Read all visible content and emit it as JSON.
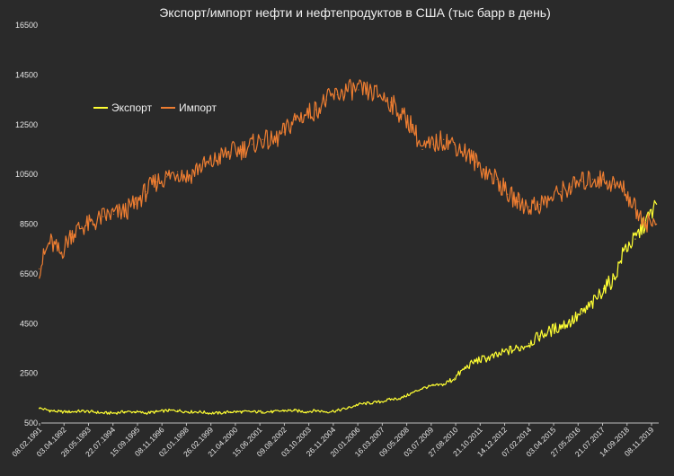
{
  "chart_data": {
    "type": "line",
    "title": "Экспорт/импорт нефти и нефтепродуктов в США (тыс барр в день)",
    "xlabel": "",
    "ylabel": "",
    "ylim": [
      500,
      16500
    ],
    "y_ticks": [
      500,
      2500,
      4500,
      6500,
      8500,
      10500,
      12500,
      14500,
      16500
    ],
    "x_tick_labels": [
      "08.02.1991",
      "03.04.1992",
      "28.05.1993",
      "22.07.1994",
      "15.09.1995",
      "08.11.1996",
      "02.01.1998",
      "26.02.1999",
      "21.04.2000",
      "15.06.2001",
      "09.08.2002",
      "03.10.2003",
      "26.11.2004",
      "20.01.2006",
      "16.03.2007",
      "09.05.2008",
      "03.07.2009",
      "27.08.2010",
      "21.10.2011",
      "14.12.2012",
      "07.02.2014",
      "03.04.2015",
      "27.05.2016",
      "21.07.2017",
      "14.09.2018",
      "08.11.2019"
    ],
    "x": [
      1991,
      1991.5,
      1992,
      1992.5,
      1993,
      1993.5,
      1994,
      1994.5,
      1995,
      1995.5,
      1996,
      1996.5,
      1997,
      1997.5,
      1998,
      1998.5,
      1999,
      1999.5,
      2000,
      2000.5,
      2001,
      2001.5,
      2002,
      2002.5,
      2003,
      2003.5,
      2004,
      2004.5,
      2005,
      2005.5,
      2006,
      2006.5,
      2007,
      2007.5,
      2008,
      2008.5,
      2009,
      2009.5,
      2010,
      2010.5,
      2011,
      2011.5,
      2012,
      2012.5,
      2013,
      2013.5,
      2014,
      2014.5,
      2015,
      2015.5,
      2016,
      2016.5,
      2017,
      2017.5,
      2018,
      2018.5,
      2019,
      2019.5,
      2020
    ],
    "series": [
      {
        "name": "Экспорт",
        "color": "#ffff33",
        "values": [
          1100,
          1000,
          950,
          950,
          980,
          950,
          900,
          900,
          950,
          950,
          900,
          950,
          1000,
          1000,
          950,
          950,
          900,
          900,
          950,
          950,
          950,
          950,
          950,
          1000,
          1000,
          950,
          1000,
          950,
          1000,
          1100,
          1250,
          1300,
          1350,
          1450,
          1500,
          1700,
          1900,
          2000,
          2050,
          2300,
          2700,
          3000,
          3100,
          3200,
          3400,
          3500,
          3700,
          4000,
          4200,
          4400,
          4600,
          4900,
          5300,
          5900,
          6300,
          7500,
          7900,
          8600,
          9300
        ]
      },
      {
        "name": "Импорт",
        "color": "#ed7d31",
        "values": [
          6700,
          7800,
          7300,
          8100,
          8400,
          8500,
          8800,
          8900,
          9000,
          9300,
          9800,
          10200,
          10400,
          10600,
          10400,
          10800,
          10900,
          11200,
          11400,
          11500,
          11700,
          11900,
          11800,
          12200,
          12700,
          12900,
          13100,
          13500,
          13700,
          13900,
          13900,
          13800,
          13700,
          13400,
          12900,
          12500,
          11500,
          11700,
          11900,
          11700,
          11400,
          11000,
          10600,
          10300,
          9700,
          9400,
          9200,
          9300,
          9500,
          9800,
          10000,
          10200,
          10300,
          10300,
          10100,
          9900,
          9100,
          8600,
          8500
        ]
      }
    ],
    "legend": "top-left",
    "grid": false
  }
}
